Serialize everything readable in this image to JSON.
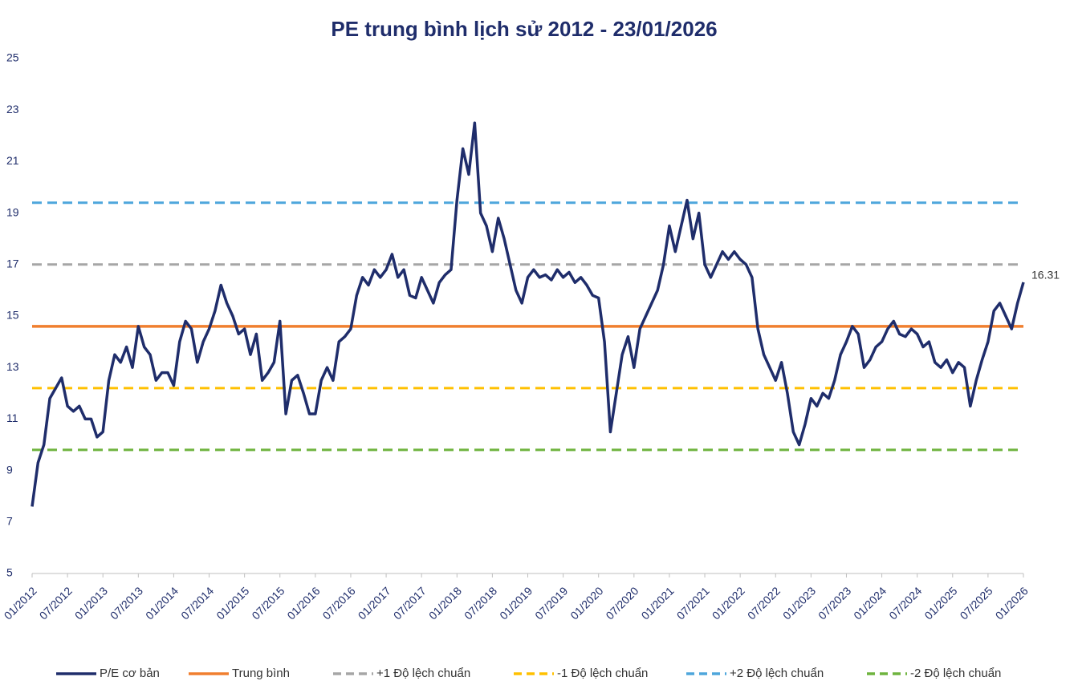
{
  "chart_data": {
    "type": "line",
    "title": "PE trung bình lịch sử 2012 - 23/01/2026",
    "categories": [
      "01/2012",
      null,
      null,
      null,
      null,
      null,
      "07/2012",
      null,
      null,
      null,
      null,
      null,
      "01/2013",
      null,
      null,
      null,
      null,
      null,
      "07/2013",
      null,
      null,
      null,
      null,
      null,
      "01/2014",
      null,
      null,
      null,
      null,
      null,
      "07/2014",
      null,
      null,
      null,
      null,
      null,
      "01/2015",
      null,
      null,
      null,
      null,
      null,
      "07/2015",
      null,
      null,
      null,
      null,
      null,
      "01/2016",
      null,
      null,
      null,
      null,
      null,
      "07/2016",
      null,
      null,
      null,
      null,
      null,
      "01/2017",
      null,
      null,
      null,
      null,
      null,
      "07/2017",
      null,
      null,
      null,
      null,
      null,
      "01/2018",
      null,
      null,
      null,
      null,
      null,
      "07/2018",
      null,
      null,
      null,
      null,
      null,
      "01/2019",
      null,
      null,
      null,
      null,
      null,
      "07/2019",
      null,
      null,
      null,
      null,
      null,
      "01/2020",
      null,
      null,
      null,
      null,
      null,
      "07/2020",
      null,
      null,
      null,
      null,
      null,
      "01/2021",
      null,
      null,
      null,
      null,
      null,
      "07/2021",
      null,
      null,
      null,
      null,
      null,
      "01/2022",
      null,
      null,
      null,
      null,
      null,
      "07/2022",
      null,
      null,
      null,
      null,
      null,
      "01/2023",
      null,
      null,
      null,
      null,
      null,
      "07/2023",
      null,
      null,
      null,
      null,
      null,
      "01/2024",
      null,
      null,
      null,
      null,
      null,
      "07/2024",
      null,
      null,
      null,
      null,
      null,
      "01/2025",
      null,
      null,
      null,
      null,
      null,
      "07/2025",
      null,
      null,
      null,
      null,
      null,
      "01/2026"
    ],
    "series": [
      {
        "name": "P/E cơ bản",
        "color": "#1f2d6b",
        "values": [
          7.6,
          9.3,
          10.0,
          11.8,
          12.2,
          12.6,
          11.5,
          11.3,
          11.5,
          11.0,
          11.0,
          10.3,
          10.5,
          12.5,
          13.5,
          13.2,
          13.8,
          13.0,
          14.6,
          13.8,
          13.5,
          12.5,
          12.8,
          12.8,
          12.3,
          14.0,
          14.8,
          14.5,
          13.2,
          14.0,
          14.5,
          15.2,
          16.2,
          15.5,
          15.0,
          14.3,
          14.5,
          13.5,
          14.3,
          12.5,
          12.8,
          13.2,
          14.8,
          11.2,
          12.5,
          12.7,
          12.0,
          11.2,
          11.2,
          12.5,
          13.0,
          12.5,
          14.0,
          14.2,
          14.5,
          15.8,
          16.5,
          16.2,
          16.8,
          16.5,
          16.8,
          17.4,
          16.5,
          16.8,
          15.8,
          15.7,
          16.5,
          16.0,
          15.5,
          16.3,
          16.6,
          16.8,
          19.5,
          21.5,
          20.5,
          22.5,
          19.0,
          18.5,
          17.5,
          18.8,
          18.0,
          17.0,
          16.0,
          15.5,
          16.5,
          16.8,
          16.5,
          16.6,
          16.4,
          16.8,
          16.5,
          16.7,
          16.3,
          16.5,
          16.2,
          15.8,
          15.7,
          14.0,
          10.5,
          12.0,
          13.5,
          14.2,
          13.0,
          14.5,
          15.0,
          15.5,
          16.0,
          17.0,
          18.5,
          17.5,
          18.5,
          19.5,
          18.0,
          19.0,
          17.0,
          16.5,
          17.0,
          17.5,
          17.2,
          17.5,
          17.2,
          17.0,
          16.5,
          14.5,
          13.5,
          13.0,
          12.5,
          13.2,
          12.0,
          10.5,
          10.0,
          10.8,
          11.8,
          11.5,
          12.0,
          11.8,
          12.5,
          13.5,
          14.0,
          14.6,
          14.3,
          13.0,
          13.3,
          13.8,
          14.0,
          14.5,
          14.8,
          14.3,
          14.2,
          14.5,
          14.3,
          13.8,
          14.0,
          13.2,
          13.0,
          13.3,
          12.8,
          13.2,
          13.0,
          11.5,
          12.5,
          13.3,
          14.0,
          15.2,
          15.5,
          15.0,
          14.5,
          15.5,
          16.31
        ]
      }
    ],
    "reference_lines": [
      {
        "name": "Trung bình",
        "value": 14.6,
        "color": "#f07f2f",
        "dashed": false
      },
      {
        "name": "+1 Độ lệch chuẩn",
        "value": 17.0,
        "color": "#a6a6a6",
        "dashed": true
      },
      {
        "name": "-1 Độ lệch chuẩn",
        "value": 12.2,
        "color": "#ffc000",
        "dashed": true
      },
      {
        "name": "+2 Độ lệch chuẩn",
        "value": 19.4,
        "color": "#4ea6dc",
        "dashed": true
      },
      {
        "name": "-2 Độ lệch chuẩn",
        "value": 9.8,
        "color": "#6fb43f",
        "dashed": true
      }
    ],
    "ylim": [
      5,
      25
    ],
    "yticks": [
      5,
      7,
      9,
      11,
      13,
      15,
      17,
      19,
      21,
      23,
      25
    ],
    "grid": false,
    "legend": "bottom"
  }
}
